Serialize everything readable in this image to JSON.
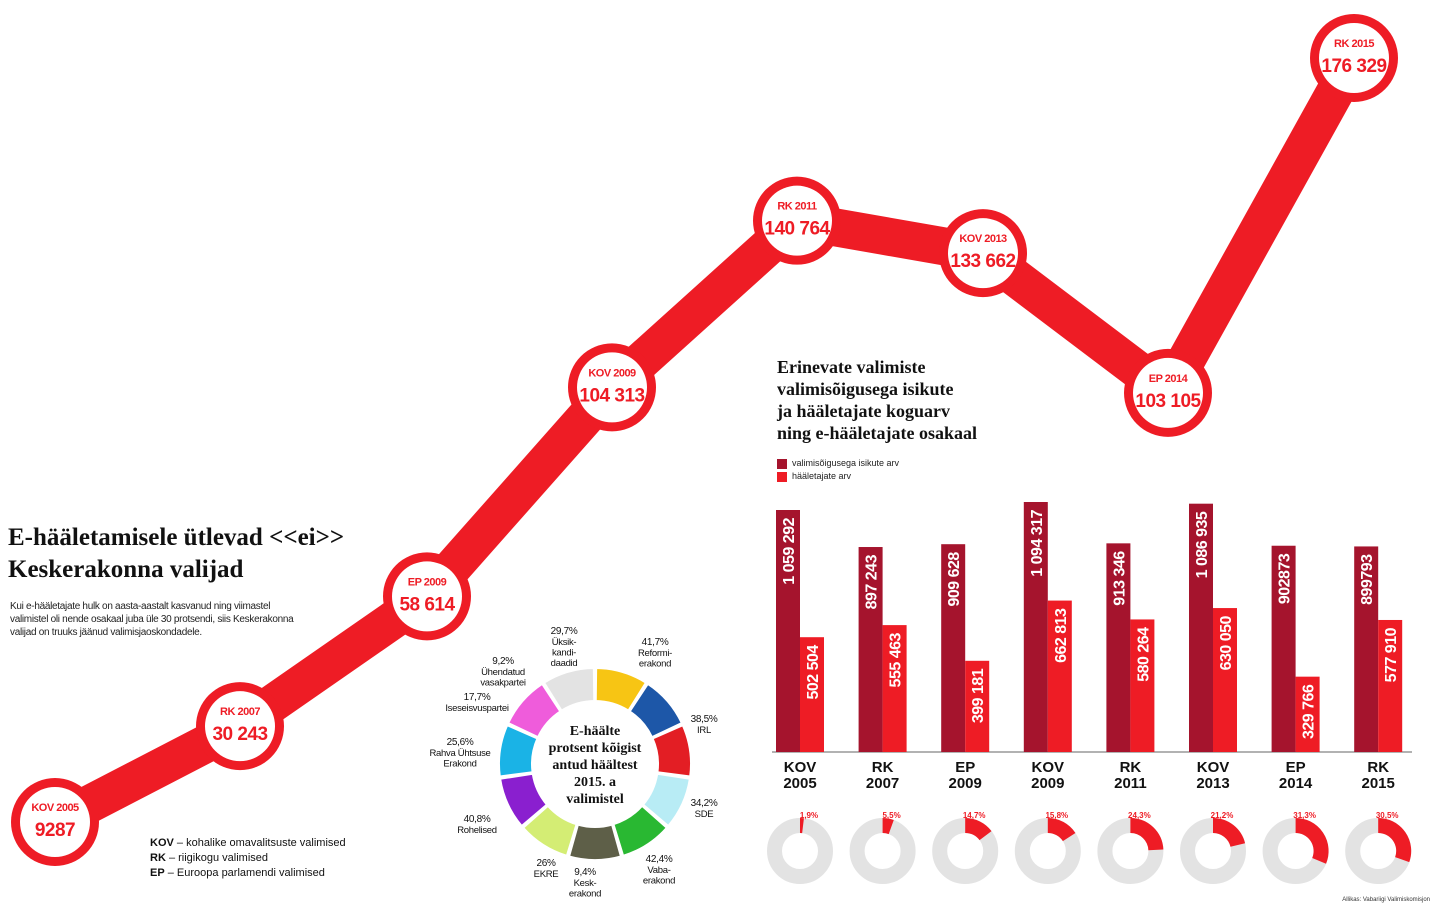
{
  "headline": {
    "line1": "E-hääletamisele ütlevad <<ei>>",
    "line2": "Keskerakonna valijad"
  },
  "intro": "Kui e-hääletajate hulk on aasta-aastalt kasvanud ning viimastel valimistel oli nende osakaal juba üle 30 protsendi, siis Keskerakonna valijad on truuks jäänud valimisjaoskondadele.",
  "abbreviations": [
    {
      "abbr": "KOV",
      "text": "– kohalike omavalitsuste valimised"
    },
    {
      "abbr": "RK",
      "text": "– riigikogu valimised"
    },
    {
      "abbr": "EP",
      "text": "– Euroopa parlamendi valimised"
    }
  ],
  "bar_section": {
    "title_lines": [
      "Erinevate valimiste",
      "valimisõigusega isikute",
      "ja hääletajate koguarv",
      "ning  e-hääletajate osakaal"
    ],
    "legend": [
      {
        "label": "valimisõigusega isikute arv",
        "color": "#a5142d"
      },
      {
        "label": "hääletajate arv",
        "color": "#ee1c25"
      }
    ]
  },
  "source": "Allikas: Vabariigi Valimiskomisjon",
  "colors": {
    "red": "#ee1c25",
    "dark_red": "#a5142d",
    "ring_grey": "#e3e3e3"
  },
  "chart_data": [
    {
      "type": "line",
      "description_label": "e-voters by election",
      "categories": [
        "KOV 2005",
        "RK 2007",
        "EP 2009",
        "KOV 2009",
        "RK 2011",
        "KOV 2013",
        "EP 2014",
        "RK 2015"
      ],
      "label_top": [
        "KOV 2005",
        "RK 2007",
        "EP 2009",
        "KOV 2009",
        "RK 2011",
        "KOV 2013",
        "EP 2014",
        "RK 2015"
      ],
      "values": [
        9287,
        30243,
        58614,
        104313,
        140764,
        133662,
        103105,
        176329
      ],
      "value_labels": [
        "9287",
        "30 243",
        "58 614",
        "104 313",
        "140 764",
        "133 662",
        "103 105",
        "176 329"
      ]
    },
    {
      "type": "bar",
      "categories": [
        "KOV 2005",
        "RK 2007",
        "EP 2009",
        "KOV 2009",
        "RK 2011",
        "KOV 2013",
        "EP 2014",
        "RK 2015"
      ],
      "category_lines": [
        [
          "KOV",
          "2005"
        ],
        [
          "RK",
          "2007"
        ],
        [
          "EP",
          "2009"
        ],
        [
          "KOV",
          "2009"
        ],
        [
          "RK",
          "2011"
        ],
        [
          "KOV",
          "2013"
        ],
        [
          "EP",
          "2014"
        ],
        [
          "RK",
          "2015"
        ]
      ],
      "series": [
        {
          "name": "valimisõigusega isikute arv",
          "values": [
            1059292,
            897243,
            909628,
            1094317,
            913346,
            1086935,
            902873,
            899793
          ],
          "labels": [
            "1 059 292",
            "897 243",
            "909 628",
            "1 094 317",
            "913 346",
            "1 086 935",
            "902873",
            "899793"
          ]
        },
        {
          "name": "hääletajate arv",
          "values": [
            502504,
            555463,
            399181,
            662813,
            580264,
            630050,
            329766,
            577910
          ],
          "labels": [
            "502 504",
            "555 463",
            "399 181",
            "662 813",
            "580 264",
            "630 050",
            "329 766",
            "577 910"
          ]
        }
      ],
      "ylim": [
        0,
        1100000
      ]
    },
    {
      "type": "pie",
      "subtype": "e-voter share rings",
      "categories": [
        "KOV 2005",
        "RK 2007",
        "EP 2009",
        "KOV 2009",
        "RK 2011",
        "KOV 2013",
        "EP 2014",
        "RK 2015"
      ],
      "values": [
        1.9,
        5.5,
        14.7,
        15.8,
        24.3,
        21.2,
        31.3,
        30.5
      ],
      "labels": [
        "1,9%",
        "5,5%",
        "14,7%",
        "15,8%",
        "24,3%",
        "21,2%",
        "31,3%",
        "30,5%"
      ]
    },
    {
      "type": "pie",
      "subtype": "donut",
      "center_lines": [
        "E-häälte",
        "protsent kõigist",
        "antud häältest",
        "2015. a",
        "valimistel"
      ],
      "slices": [
        {
          "pct": 41.7,
          "label": "41,7%",
          "name_lines": [
            "Reformi-",
            "erakond"
          ],
          "color": "#f7c514"
        },
        {
          "pct": 38.5,
          "label": "38,5%",
          "name_lines": [
            "IRL"
          ],
          "color": "#1d57a8"
        },
        {
          "pct": 34.2,
          "label": "34,2%",
          "name_lines": [
            "SDE"
          ],
          "color": "#e31e24"
        },
        {
          "pct": 42.4,
          "label": "42,4%",
          "name_lines": [
            "Vaba-",
            "erakond"
          ],
          "color": "#b8ecf5"
        },
        {
          "pct": 9.4,
          "label": "9,4%",
          "name_lines": [
            "Kesk-",
            "erakond"
          ],
          "color": "#29b832"
        },
        {
          "pct": 26,
          "label": "26%",
          "name_lines": [
            "EKRE"
          ],
          "color": "#5e5f48"
        },
        {
          "pct": 40.8,
          "label": "40,8%",
          "name_lines": [
            "Rohelised"
          ],
          "color": "#d4ed74"
        },
        {
          "pct": 25.6,
          "label": "25,6%",
          "name_lines": [
            "Rahva Ühtsuse",
            "Erakond"
          ],
          "color": "#8a1fcf"
        },
        {
          "pct": 17.7,
          "label": "17,7%",
          "name_lines": [
            "Iseseisvuspartei"
          ],
          "color": "#1ab3e6"
        },
        {
          "pct": 9.2,
          "label": "9,2%",
          "name_lines": [
            "Ühendatud",
            "vasakpartei"
          ],
          "color": "#ef5cdb"
        },
        {
          "pct": 29.7,
          "label": "29,7%",
          "name_lines": [
            "Üksik-",
            "kandi-",
            "daadid"
          ],
          "color": "#e3e3e3"
        }
      ]
    }
  ]
}
